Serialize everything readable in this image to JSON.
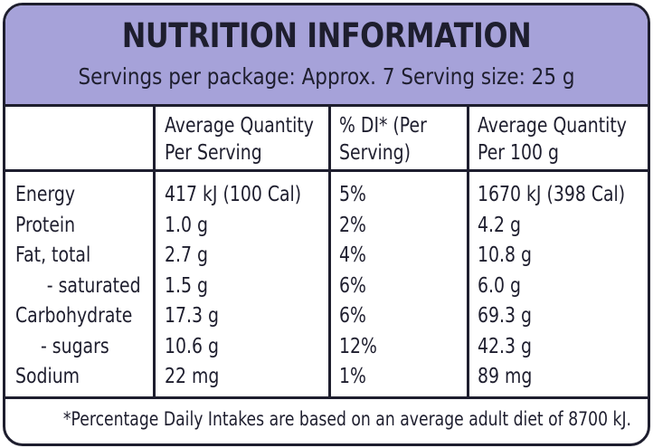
{
  "title": "NUTRITION INFORMATION",
  "servings": "Servings per package: Approx. 7  Serving size: 25 g",
  "columns": {
    "per_serving": [
      "Average Quantity",
      "Per Serving"
    ],
    "di": [
      "% DI* (Per",
      "Serving)"
    ],
    "per_100g": [
      "Average Quantity",
      "Per 100 g"
    ]
  },
  "rows": [
    {
      "name": "Energy",
      "serving": "417 kJ (100 Cal)",
      "di": "5%",
      "per100": "1670 kJ (398 Cal)"
    },
    {
      "name": "Protein",
      "serving": "1.0 g",
      "di": "2%",
      "per100": "4.2 g"
    },
    {
      "name": "Fat, total",
      "serving": "2.7 g",
      "di": "4%",
      "per100": "10.8 g"
    },
    {
      "name": "- saturated",
      "serving": "1.5 g",
      "di": "6%",
      "per100": "6.0 g"
    },
    {
      "name": "Carbohydrate",
      "serving": "17.3 g",
      "di": "6%",
      "per100": "69.3 g"
    },
    {
      "name": "- sugars",
      "serving": "10.6 g",
      "di": "12%",
      "per100": "42.3 g"
    },
    {
      "name": "Sodium",
      "serving": "22 mg",
      "di": "1%",
      "per100": "89 mg"
    }
  ],
  "footnote": "*Percentage Daily Intakes are based on an average adult diet of 8700 kJ.",
  "colors": {
    "header": "#a6a2d9",
    "ink": "#1e1e2e"
  }
}
